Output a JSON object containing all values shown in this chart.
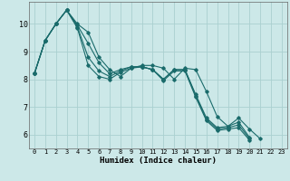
{
  "xlabel": "Humidex (Indice chaleur)",
  "background_color": "#cce8e8",
  "grid_color": "#aad0d0",
  "line_color": "#1a6b6b",
  "series": [
    [
      8.2,
      9.4,
      10.0,
      10.5,
      10.0,
      9.7,
      8.8,
      8.35,
      8.1,
      8.4,
      8.5,
      8.5,
      8.4,
      8.0,
      8.4,
      8.35,
      7.55,
      6.65,
      6.3,
      6.6,
      6.2,
      5.85
    ],
    [
      8.2,
      9.4,
      10.0,
      10.5,
      9.95,
      9.3,
      8.6,
      8.2,
      8.35,
      8.45,
      8.45,
      8.35,
      8.0,
      8.35,
      8.35,
      7.45,
      6.6,
      6.25,
      6.3,
      6.45,
      5.9
    ],
    [
      8.2,
      9.4,
      10.0,
      10.5,
      9.9,
      8.8,
      8.3,
      8.1,
      8.3,
      8.45,
      8.45,
      8.35,
      8.0,
      8.35,
      8.35,
      7.4,
      6.55,
      6.2,
      6.25,
      6.35,
      5.85
    ],
    [
      8.2,
      9.4,
      10.0,
      10.5,
      9.85,
      8.5,
      8.1,
      8.0,
      8.25,
      8.4,
      8.45,
      8.35,
      7.95,
      8.3,
      8.3,
      7.35,
      6.5,
      6.15,
      6.2,
      6.25,
      5.8
    ]
  ],
  "ylim": [
    5.5,
    10.8
  ],
  "yticks": [
    6,
    7,
    8,
    9,
    10
  ],
  "xlim": [
    -0.5,
    23.5
  ],
  "xticks": [
    0,
    1,
    2,
    3,
    4,
    5,
    6,
    7,
    8,
    9,
    10,
    11,
    12,
    13,
    14,
    15,
    16,
    17,
    18,
    19,
    20,
    21,
    22,
    23
  ]
}
